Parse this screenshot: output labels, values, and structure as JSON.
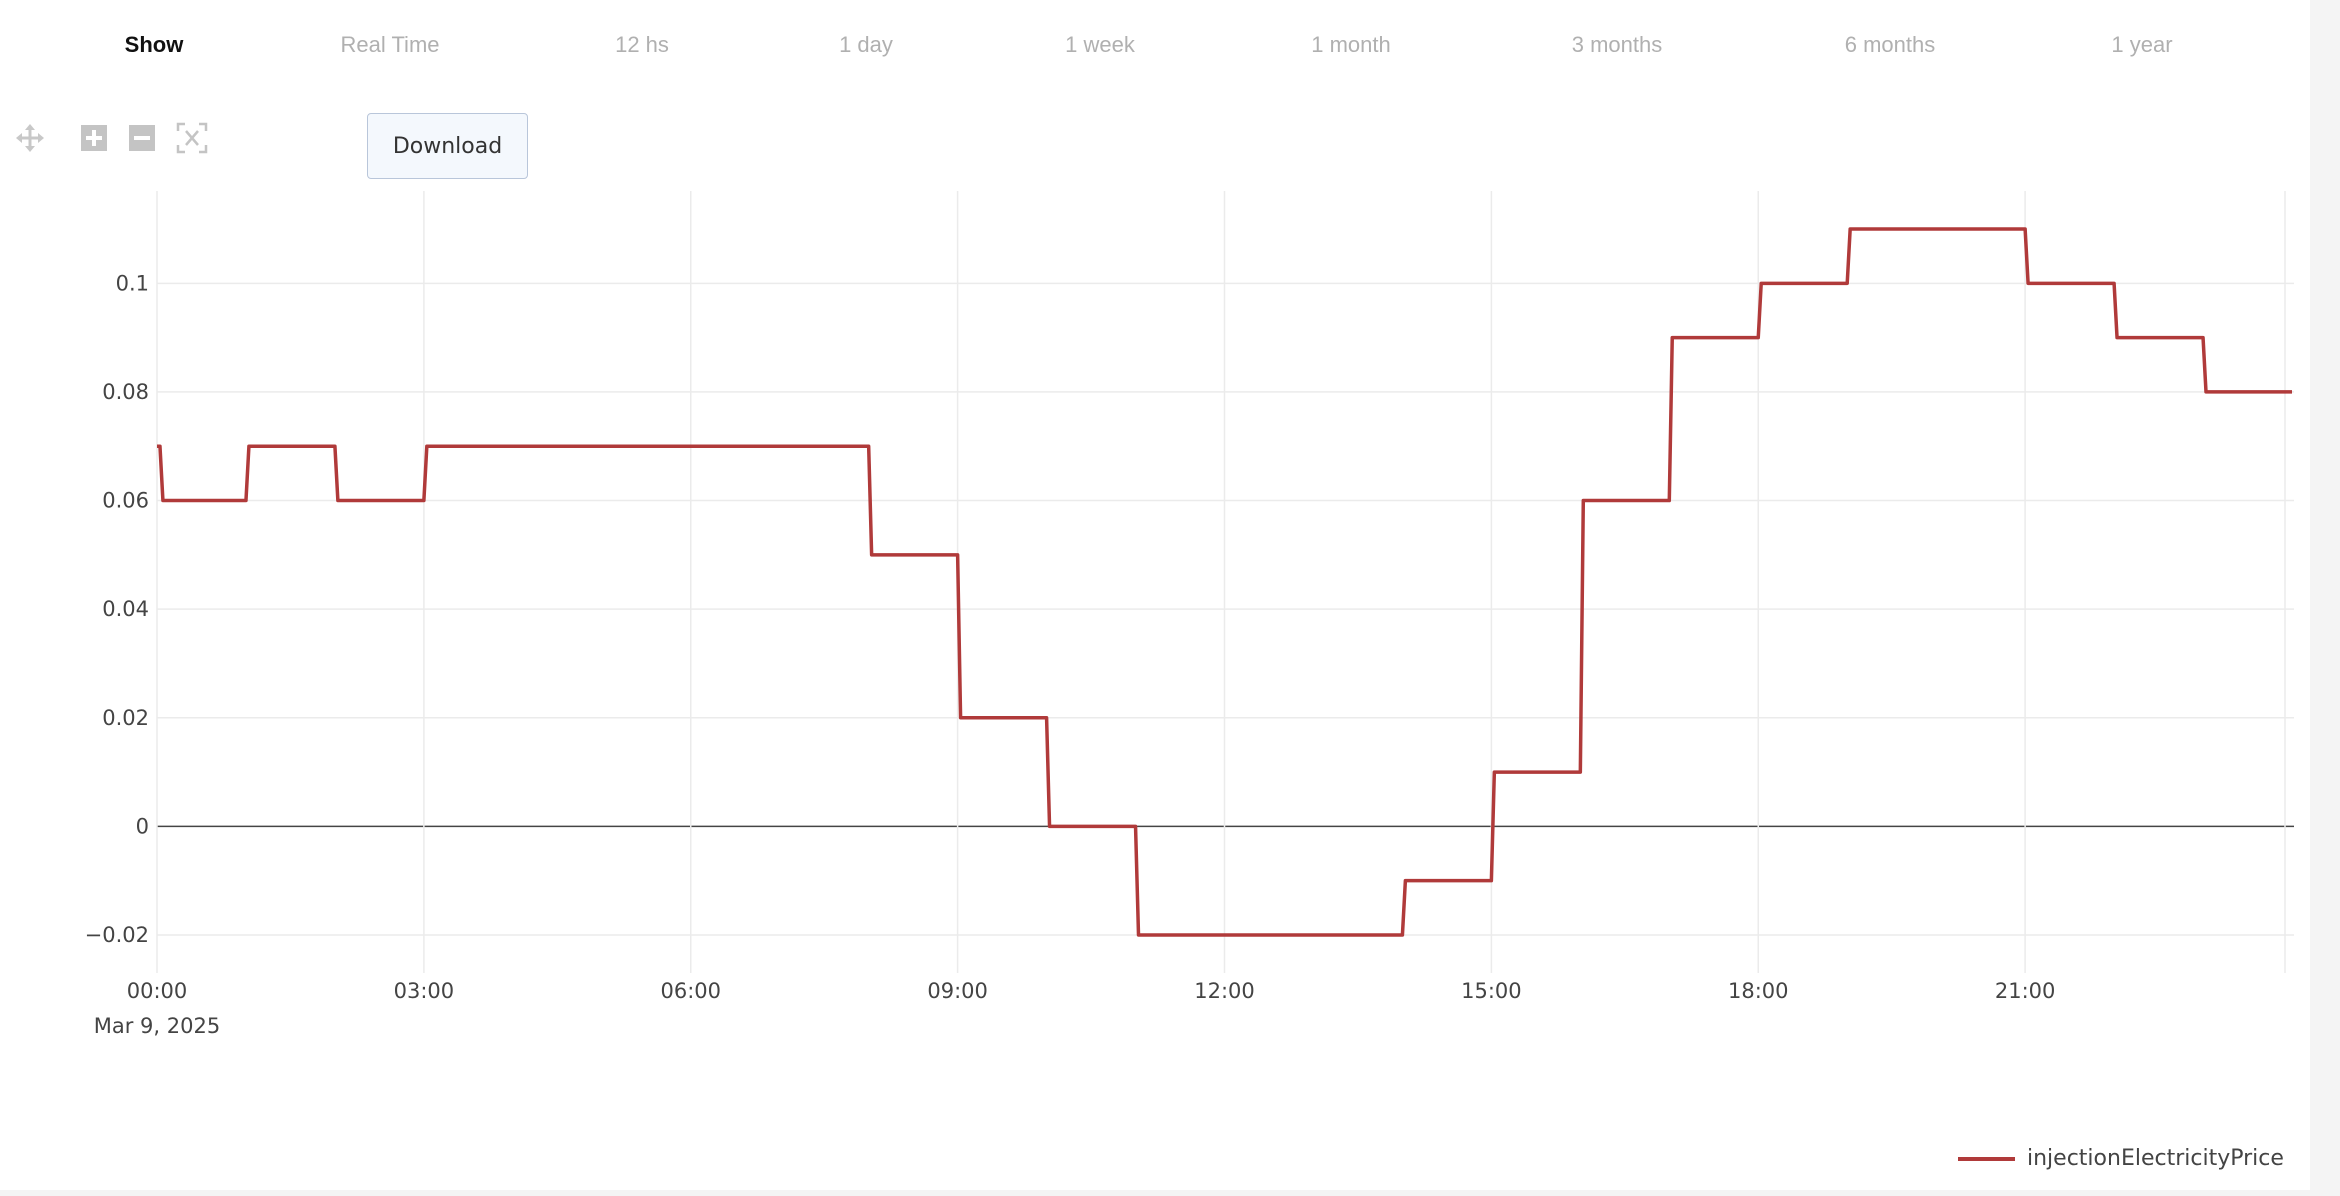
{
  "tabs": [
    {
      "label": "Show",
      "active": true
    },
    {
      "label": "Real Time"
    },
    {
      "label": "12 hs"
    },
    {
      "label": "1 day"
    },
    {
      "label": "1 week"
    },
    {
      "label": "1 month"
    },
    {
      "label": "3 months"
    },
    {
      "label": "6 months"
    },
    {
      "label": "1 year"
    }
  ],
  "toolbar": {
    "icons": [
      "pan-icon",
      "zoom-in-icon",
      "zoom-out-icon",
      "reset-axes-icon"
    ],
    "download_label": "Download"
  },
  "chart_data": {
    "type": "line",
    "line_shape": "step",
    "x_tick_labels": [
      "00:00",
      "03:00",
      "06:00",
      "09:00",
      "12:00",
      "15:00",
      "18:00",
      "21:00"
    ],
    "x_date_label": "Mar 9, 2025",
    "x_range": [
      "00:00",
      "24:00"
    ],
    "y_tick_labels": [
      "−0.02",
      "0",
      "0.02",
      "0.04",
      "0.06",
      "0.08",
      "0.1"
    ],
    "y_ticks": [
      -0.02,
      0,
      0.02,
      0.04,
      0.06,
      0.08,
      0.1
    ],
    "ylim": [
      -0.027,
      0.117
    ],
    "grid": true,
    "legend_position": "bottom-right",
    "series": [
      {
        "name": "injectionElectricityPrice",
        "color": "#b03a3a",
        "points": [
          {
            "x": "00:00",
            "y": 0.07
          },
          {
            "x": "00:02",
            "y": 0.06
          },
          {
            "x": "01:00",
            "y": 0.07
          },
          {
            "x": "02:00",
            "y": 0.06
          },
          {
            "x": "03:00",
            "y": 0.07
          },
          {
            "x": "04:00",
            "y": 0.07
          },
          {
            "x": "05:00",
            "y": 0.07
          },
          {
            "x": "06:00",
            "y": 0.07
          },
          {
            "x": "07:00",
            "y": 0.07
          },
          {
            "x": "08:00",
            "y": 0.05
          },
          {
            "x": "09:00",
            "y": 0.02
          },
          {
            "x": "10:00",
            "y": 0.0
          },
          {
            "x": "11:00",
            "y": -0.02
          },
          {
            "x": "12:00",
            "y": -0.02
          },
          {
            "x": "13:00",
            "y": -0.02
          },
          {
            "x": "14:00",
            "y": -0.01
          },
          {
            "x": "15:00",
            "y": 0.01
          },
          {
            "x": "16:00",
            "y": 0.06
          },
          {
            "x": "17:00",
            "y": 0.09
          },
          {
            "x": "18:00",
            "y": 0.1
          },
          {
            "x": "19:00",
            "y": 0.11
          },
          {
            "x": "20:00",
            "y": 0.11
          },
          {
            "x": "21:00",
            "y": 0.1
          },
          {
            "x": "22:00",
            "y": 0.09
          },
          {
            "x": "23:00",
            "y": 0.08
          }
        ]
      }
    ]
  },
  "legend": {
    "label": "injectionElectricityPrice"
  }
}
